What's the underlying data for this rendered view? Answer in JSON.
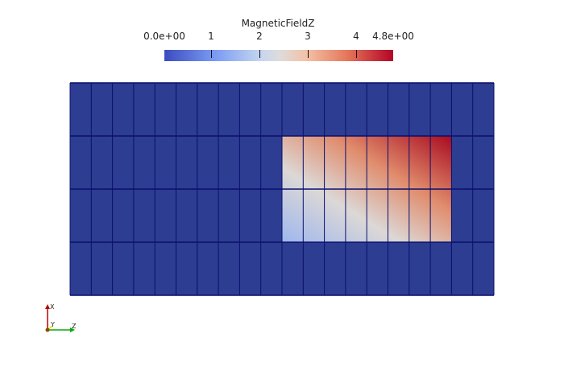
{
  "colorbar": {
    "title": "MagneticFieldZ",
    "labels": [
      "0.0e+00",
      "1",
      "2",
      "3",
      "4",
      "4.8e+00"
    ],
    "min_color": "#3b4cc0",
    "max_color": "#b40426"
  },
  "mesh": {
    "columns": 20,
    "rows": 4,
    "background_color": "#2d3d91",
    "edge_color": "#0a0f6e"
  },
  "orientation_axes": {
    "x_label": "X",
    "y_label": "Y",
    "z_label": "Z",
    "x_color": "#b40404",
    "y_color": "#e6e600",
    "z_color": "#08a808"
  }
}
